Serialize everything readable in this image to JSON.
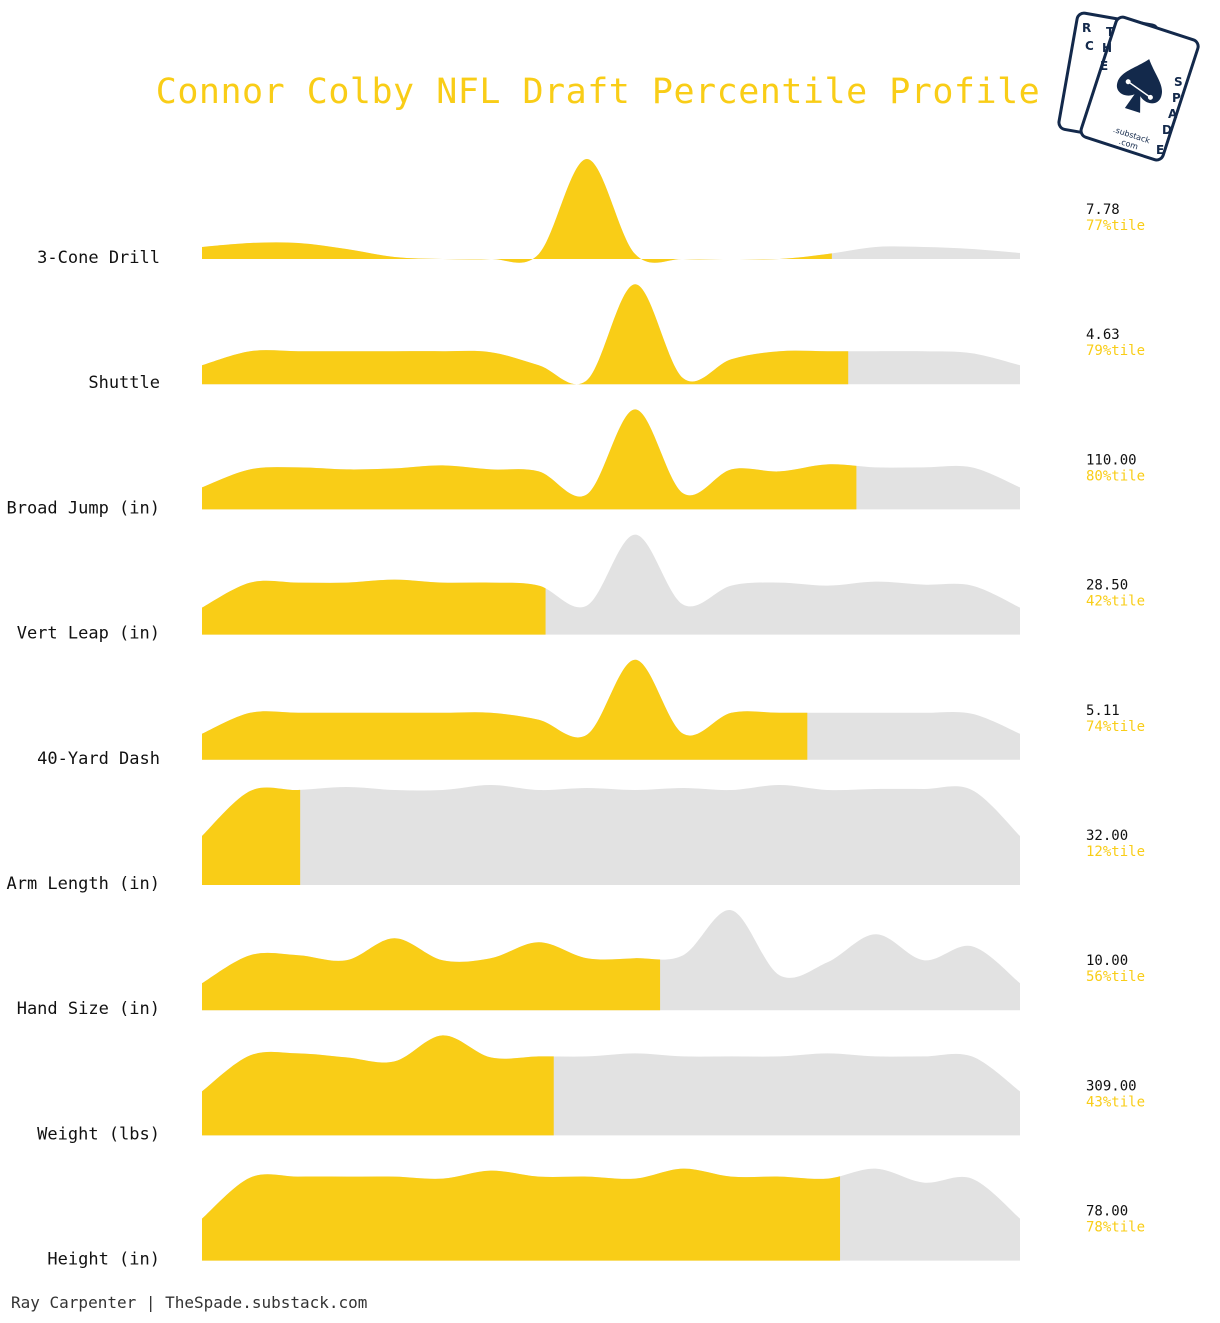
{
  "title": "Connor Colby NFL Draft Percentile Profile",
  "footer": "Ray Carpenter | TheSpade.substack.com",
  "logo": {
    "letters_back": "RC",
    "letters_front": [
      "T",
      "H",
      "E",
      "S",
      "P",
      "A",
      "D",
      "E"
    ],
    "sub1": ".substack",
    "sub2": ".com"
  },
  "colors": {
    "highlight": "#f9cd17",
    "distribution": "#e2e2e2",
    "text": "#111111"
  },
  "chart_data": {
    "type": "ridgeline",
    "title": "Connor Colby NFL Draft Percentile Profile",
    "rows": [
      {
        "label": "3-Cone Drill",
        "value": "7.78",
        "percentile_label": "77%tile",
        "percentile": 77,
        "density": [
          0.12,
          0.16,
          0.16,
          0.1,
          0.02,
          0.0,
          0.0,
          0.05,
          1.0,
          0.05,
          0.0,
          0.0,
          0.0,
          0.05,
          0.12,
          0.12,
          0.1,
          0.06
        ]
      },
      {
        "label": "Shuttle",
        "value": "4.63",
        "percentile_label": "79%tile",
        "percentile": 79,
        "density": [
          0.19,
          0.33,
          0.33,
          0.33,
          0.33,
          0.33,
          0.32,
          0.19,
          0.04,
          1.0,
          0.06,
          0.25,
          0.33,
          0.33,
          0.33,
          0.33,
          0.31,
          0.19
        ]
      },
      {
        "label": "Broad Jump (in)",
        "value": "110.00",
        "percentile_label": "80%tile",
        "percentile": 80,
        "density": [
          0.22,
          0.4,
          0.42,
          0.4,
          0.41,
          0.44,
          0.4,
          0.38,
          0.15,
          1.0,
          0.16,
          0.4,
          0.38,
          0.45,
          0.42,
          0.42,
          0.42,
          0.22
        ]
      },
      {
        "label": "Vert Leap (in)",
        "value": "28.50",
        "percentile_label": "42%tile",
        "percentile": 42,
        "density": [
          0.27,
          0.52,
          0.52,
          0.52,
          0.55,
          0.52,
          0.52,
          0.49,
          0.29,
          1.0,
          0.3,
          0.49,
          0.52,
          0.49,
          0.53,
          0.5,
          0.49,
          0.27
        ]
      },
      {
        "label": "40-Yard Dash",
        "value": "5.11",
        "percentile_label": "74%tile",
        "percentile": 74,
        "density": [
          0.26,
          0.47,
          0.47,
          0.47,
          0.47,
          0.47,
          0.47,
          0.4,
          0.25,
          1.0,
          0.26,
          0.47,
          0.47,
          0.47,
          0.47,
          0.47,
          0.46,
          0.26
        ]
      },
      {
        "label": "Arm Length (in)",
        "value": "32.00",
        "percentile_label": "12%tile",
        "percentile": 12,
        "density": [
          0.49,
          0.94,
          0.95,
          0.98,
          0.95,
          0.95,
          1.0,
          0.95,
          0.97,
          0.95,
          0.97,
          0.95,
          1.0,
          0.95,
          0.96,
          0.96,
          0.95,
          0.49
        ]
      },
      {
        "label": "Hand Size (in)",
        "value": "10.00",
        "percentile_label": "56%tile",
        "percentile": 56,
        "density": [
          0.27,
          0.55,
          0.55,
          0.5,
          0.72,
          0.5,
          0.52,
          0.68,
          0.52,
          0.52,
          0.55,
          1.0,
          0.35,
          0.48,
          0.76,
          0.5,
          0.64,
          0.27
        ]
      },
      {
        "label": "Weight (lbs)",
        "value": "309.00",
        "percentile_label": "43%tile",
        "percentile": 43,
        "density": [
          0.44,
          0.8,
          0.82,
          0.78,
          0.74,
          1.0,
          0.78,
          0.79,
          0.79,
          0.82,
          0.79,
          0.79,
          0.79,
          0.82,
          0.79,
          0.79,
          0.79,
          0.44
        ]
      },
      {
        "label": "Height (in)",
        "value": "78.00",
        "percentile_label": "78%tile",
        "percentile": 78,
        "density": [
          0.42,
          0.83,
          0.84,
          0.84,
          0.84,
          0.82,
          0.9,
          0.84,
          0.84,
          0.82,
          0.92,
          0.84,
          0.84,
          0.82,
          0.92,
          0.78,
          0.82,
          0.42
        ]
      }
    ]
  }
}
